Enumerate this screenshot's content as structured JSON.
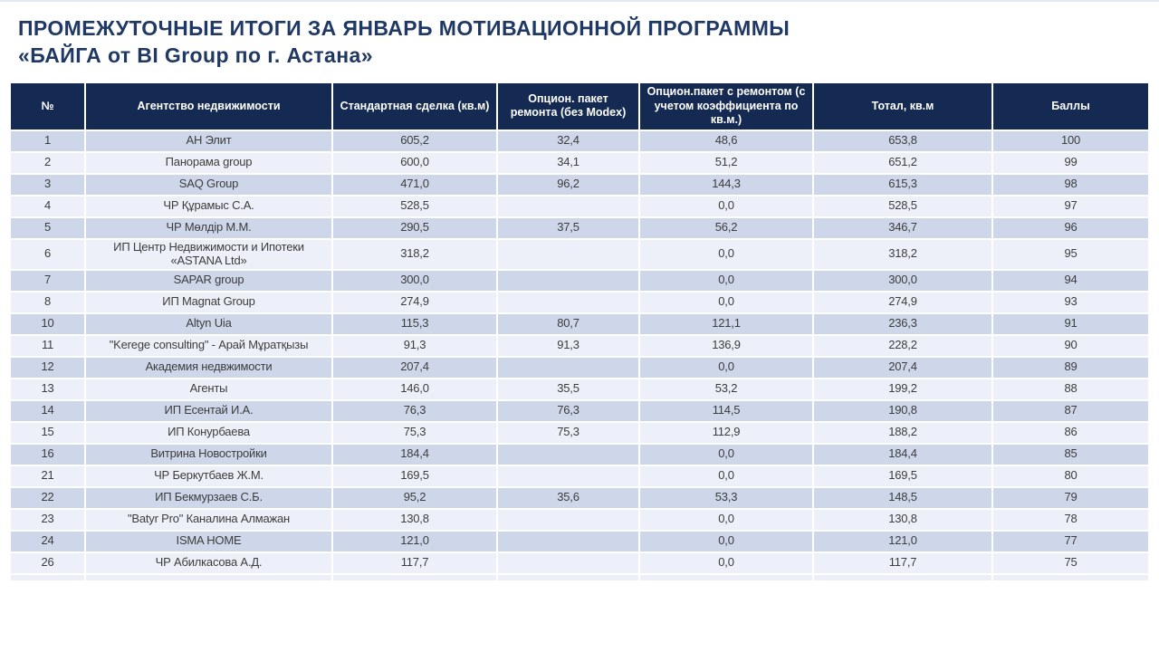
{
  "slide": {
    "title_line1": "ПРОМЕЖУТОЧНЫЕ ИТОГИ ЗА ЯНВАРЬ МОТИВАЦИОННОЙ ПРОГРАММЫ",
    "title_line2": "«БАЙГА  от BI Group по г. Астана»"
  },
  "theme": {
    "title_color": "#1F3864",
    "header_bg": "#152A52",
    "header_text": "#FFFFFF",
    "row_stripe_dark": "#CDD7E9",
    "row_stripe_light": "#EDF0F8",
    "body_text": "#3D3D3D"
  },
  "table": {
    "columns": [
      "№",
      "Агентство недвижимости",
      "Стандартная сделка (кв.м)",
      "Опцион. пакет ремонта (без Modex)",
      "Опцион.пакет с ремонтом (с учетом коэффициента по кв.м.)",
      "Тотал, кв.м",
      "Баллы"
    ],
    "rows": [
      [
        "1",
        "АН Элит",
        "605,2",
        "32,4",
        "48,6",
        "653,8",
        "100"
      ],
      [
        "2",
        "Панорама group",
        "600,0",
        "34,1",
        "51,2",
        "651,2",
        "99"
      ],
      [
        "3",
        "SAQ Group",
        "471,0",
        "96,2",
        "144,3",
        "615,3",
        "98"
      ],
      [
        "4",
        "ЧР Құрамыс С.А.",
        "528,5",
        "",
        "0,0",
        "528,5",
        "97"
      ],
      [
        "5",
        "ЧР Мөлдір М.М.",
        "290,5",
        "37,5",
        "56,2",
        "346,7",
        "96"
      ],
      [
        "6",
        "ИП Центр Недвижимости и Ипотеки «ASTANA Ltd»",
        "318,2",
        "",
        "0,0",
        "318,2",
        "95"
      ],
      [
        "7",
        "SAPAR group",
        "300,0",
        "",
        "0,0",
        "300,0",
        "94"
      ],
      [
        "8",
        "ИП Magnat Group",
        "274,9",
        "",
        "0,0",
        "274,9",
        "93"
      ],
      [
        "10",
        "Altyn Uia",
        "115,3",
        "80,7",
        "121,1",
        "236,3",
        "91"
      ],
      [
        "11",
        "\"Kerege consulting\" - Арай Мұратқызы",
        "91,3",
        "91,3",
        "136,9",
        "228,2",
        "90"
      ],
      [
        "12",
        "Академия недвжимости",
        "207,4",
        "",
        "0,0",
        "207,4",
        "89"
      ],
      [
        "13",
        "Агенты",
        "146,0",
        "35,5",
        "53,2",
        "199,2",
        "88"
      ],
      [
        "14",
        "ИП Есентай И.А.",
        "76,3",
        "76,3",
        "114,5",
        "190,8",
        "87"
      ],
      [
        "15",
        "ИП Конурбаева",
        "75,3",
        "75,3",
        "112,9",
        "188,2",
        "86"
      ],
      [
        "16",
        "Витрина Новостройки",
        "184,4",
        "",
        "0,0",
        "184,4",
        "85"
      ],
      [
        "21",
        "ЧР Беркутбаев Ж.М.",
        "169,5",
        "",
        "0,0",
        "169,5",
        "80"
      ],
      [
        "22",
        "ИП Бекмурзаев С.Б.",
        "95,2",
        "35,6",
        "53,3",
        "148,5",
        "79"
      ],
      [
        "23",
        "\"Batyr Pro\" Каналина Алмажан",
        "130,8",
        "",
        "0,0",
        "130,8",
        "78"
      ],
      [
        "24",
        "ISMA HOME",
        "121,0",
        "",
        "0,0",
        "121,0",
        "77"
      ],
      [
        "26",
        "ЧР Абилкасова А.Д.",
        "117,7",
        "",
        "0,0",
        "117,7",
        "75"
      ]
    ]
  }
}
